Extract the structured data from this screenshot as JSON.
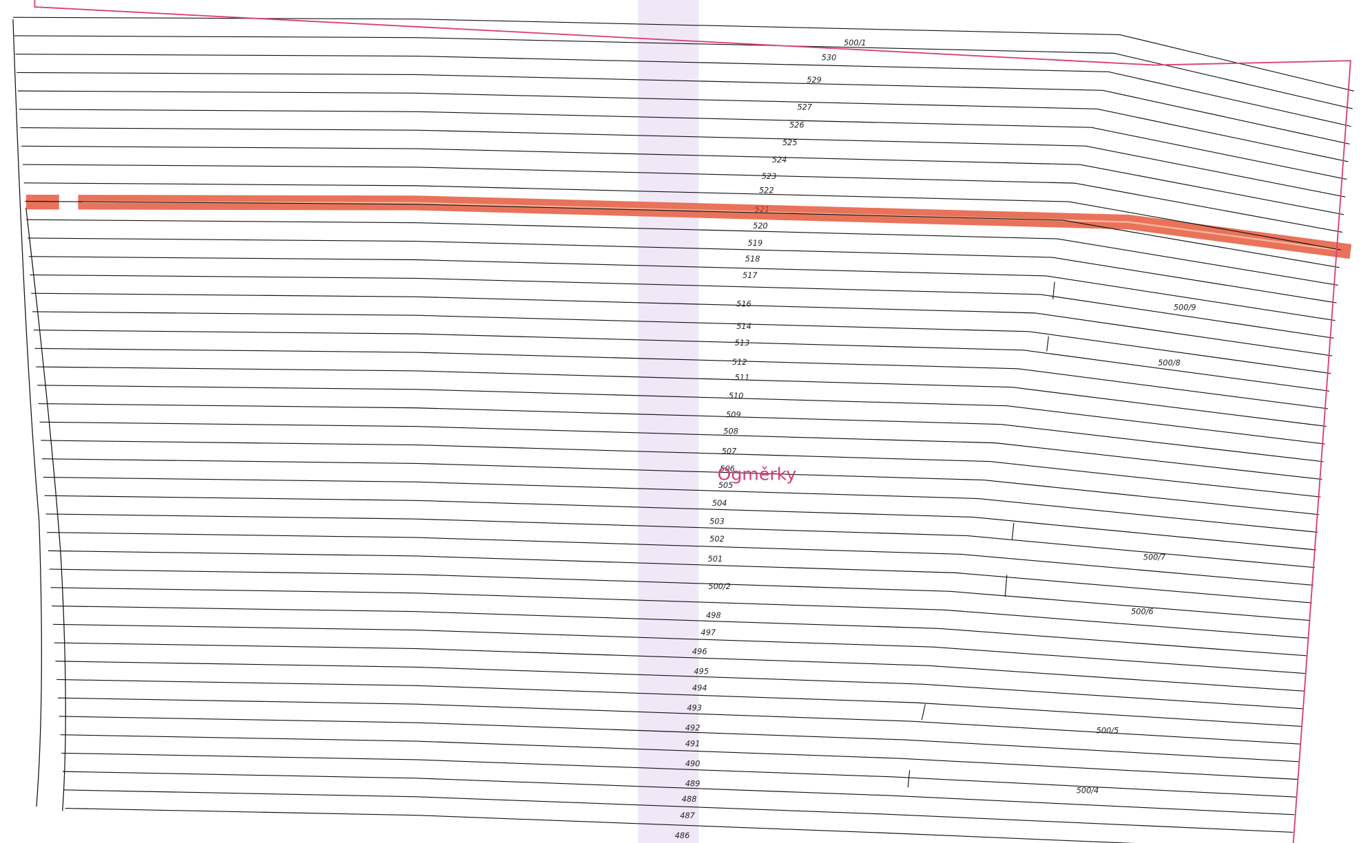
{
  "parcels": [
    "500/1",
    "530",
    "529",
    "527",
    "526",
    "525",
    "524",
    "523",
    "522",
    "521",
    "520",
    "519",
    "518",
    "517",
    "516",
    "514",
    "513",
    "512",
    "511",
    "510",
    "509",
    "508",
    "507",
    "506",
    "505",
    "504",
    "503",
    "502",
    "501",
    "500/2",
    "498",
    "497",
    "496",
    "495",
    "494",
    "493",
    "492",
    "491",
    "490",
    "489",
    "488",
    "487",
    "486",
    "500/9",
    "500/8",
    "500/7",
    "500/6",
    "500/5",
    "500/4"
  ],
  "locality": "Ogměrky"
}
